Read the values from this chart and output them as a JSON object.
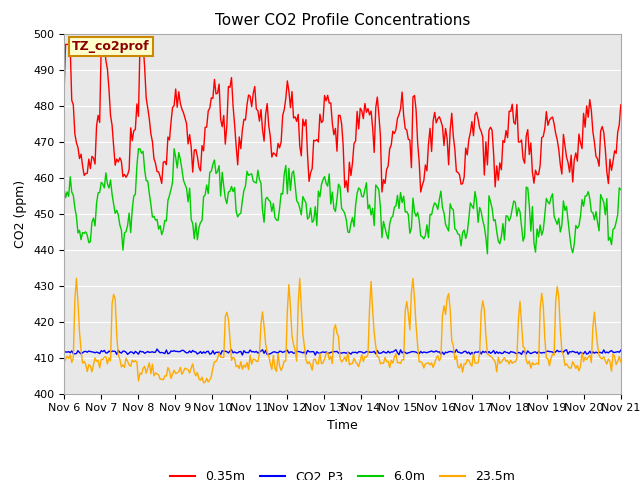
{
  "title": "Tower CO2 Profile Concentrations",
  "xlabel": "Time",
  "ylabel": "CO2 (ppm)",
  "ylim": [
    400,
    500
  ],
  "xlim": [
    0,
    360
  ],
  "annotation": "TZ_co2prof",
  "bg_color": "#e8e8e8",
  "fig_color": "#ffffff",
  "grid_color": "#ffffff",
  "x_tick_labels": [
    "Nov 6",
    "Nov 7",
    "Nov 8",
    "Nov 9",
    "Nov 10",
    "Nov 11",
    "Nov 12",
    "Nov 13",
    "Nov 14",
    "Nov 15",
    "Nov 16",
    "Nov 17",
    "Nov 18",
    "Nov 19",
    "Nov 20",
    "Nov 21"
  ],
  "x_tick_positions": [
    0,
    24,
    48,
    72,
    96,
    120,
    144,
    168,
    192,
    216,
    240,
    264,
    288,
    312,
    336,
    360
  ],
  "series": {
    "red": {
      "label": "0.35m",
      "color": "#ff0000"
    },
    "blue": {
      "label": "CO2_P3",
      "color": "#0000ff"
    },
    "green": {
      "label": "6.0m",
      "color": "#00cc00"
    },
    "orange": {
      "label": "23.5m",
      "color": "#ffaa00"
    }
  },
  "linewidth": 1.0,
  "title_fontsize": 11,
  "axis_label_fontsize": 9,
  "tick_fontsize": 8,
  "legend_fontsize": 9
}
